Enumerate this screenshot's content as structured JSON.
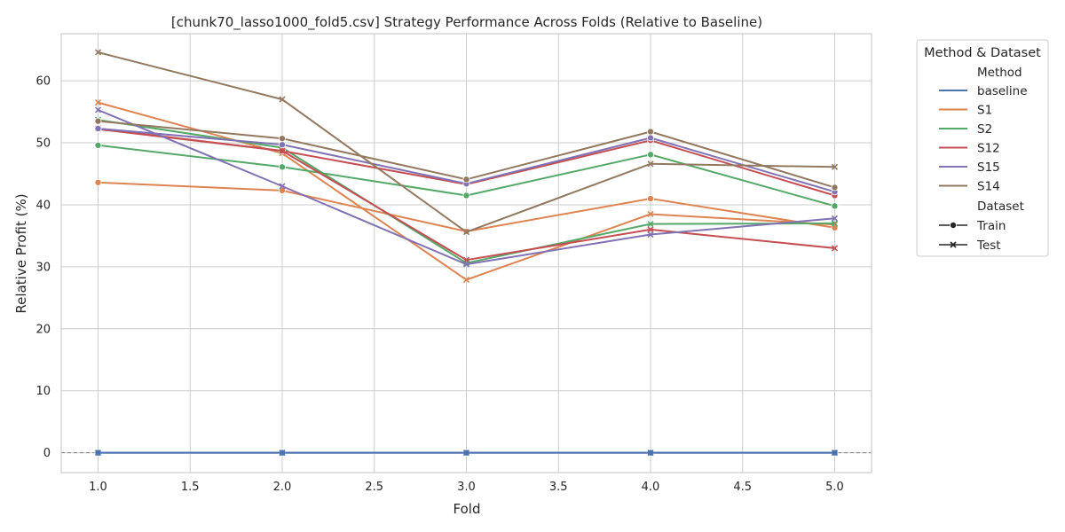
{
  "chart_data": {
    "type": "line",
    "title": "[chunk70_lasso1000_fold5.csv] Strategy Performance Across Folds (Relative to Baseline)",
    "xlabel": "Fold",
    "ylabel": "Relative Profit (%)",
    "xlim": [
      0.8,
      5.2
    ],
    "ylim": [
      -3.2,
      67.6
    ],
    "xticks": [
      1.0,
      1.5,
      2.0,
      2.5,
      3.0,
      3.5,
      4.0,
      4.5,
      5.0
    ],
    "xtick_labels": [
      "1.0",
      "1.5",
      "2.0",
      "2.5",
      "3.0",
      "3.5",
      "4.0",
      "4.5",
      "5.0"
    ],
    "yticks": [
      0,
      10,
      20,
      30,
      40,
      50,
      60
    ],
    "ytick_labels": [
      "0",
      "10",
      "20",
      "30",
      "40",
      "50",
      "60"
    ],
    "grid": true,
    "reference_line_y": 0,
    "x": [
      1,
      2,
      3,
      4,
      5
    ],
    "legend": {
      "title": "Method & Dataset",
      "placement": "outside-right",
      "method_header": "Method",
      "dataset_header": "Dataset",
      "methods": [
        {
          "name": "baseline",
          "color": "#4c72b0"
        },
        {
          "name": "S1",
          "color": "#dd8452"
        },
        {
          "name": "S2",
          "color": "#55a868"
        },
        {
          "name": "S12",
          "color": "#c44e52"
        },
        {
          "name": "S15",
          "color": "#8172b3"
        },
        {
          "name": "S14",
          "color": "#937860"
        }
      ],
      "datasets": [
        {
          "name": "Train",
          "marker": "circle"
        },
        {
          "name": "Test",
          "marker": "x"
        }
      ]
    },
    "series": [
      {
        "method": "baseline",
        "dataset": "Train",
        "color": "#4c72b0",
        "marker": "circle",
        "values": [
          0,
          0,
          0,
          0,
          0
        ]
      },
      {
        "method": "baseline",
        "dataset": "Test",
        "color": "#4c72b0",
        "marker": "x",
        "values": [
          0,
          0,
          0,
          0,
          0
        ]
      },
      {
        "method": "S1",
        "dataset": "Train",
        "color": "#dd8452",
        "marker": "circle",
        "values": [
          43.6,
          42.3,
          35.7,
          41.0,
          36.3
        ]
      },
      {
        "method": "S1",
        "dataset": "Test",
        "color": "#dd8452",
        "marker": "x",
        "values": [
          56.5,
          48.3,
          27.9,
          38.5,
          36.8
        ]
      },
      {
        "method": "S2",
        "dataset": "Train",
        "color": "#55a868",
        "marker": "circle",
        "values": [
          49.6,
          46.1,
          41.5,
          48.1,
          39.8
        ]
      },
      {
        "method": "S2",
        "dataset": "Test",
        "color": "#55a868",
        "marker": "x",
        "values": [
          53.7,
          49.2,
          30.6,
          36.9,
          37.0
        ]
      },
      {
        "method": "S12",
        "dataset": "Train",
        "color": "#c44e52",
        "marker": "circle",
        "values": [
          52.2,
          48.7,
          43.3,
          50.4,
          41.5
        ]
      },
      {
        "method": "S12",
        "dataset": "Test",
        "color": "#c44e52",
        "marker": "x",
        "values": [
          52.3,
          48.7,
          31.1,
          36.0,
          33.0
        ]
      },
      {
        "method": "S15",
        "dataset": "Train",
        "color": "#8172b3",
        "marker": "circle",
        "values": [
          52.3,
          49.7,
          43.4,
          50.8,
          42.1
        ]
      },
      {
        "method": "S15",
        "dataset": "Test",
        "color": "#8172b3",
        "marker": "x",
        "values": [
          55.3,
          43.0,
          30.4,
          35.2,
          37.8
        ]
      },
      {
        "method": "S14",
        "dataset": "Train",
        "color": "#937860",
        "marker": "circle",
        "values": [
          53.5,
          50.7,
          44.1,
          51.8,
          42.8
        ]
      },
      {
        "method": "S14",
        "dataset": "Test",
        "color": "#937860",
        "marker": "x",
        "values": [
          64.6,
          57.0,
          35.6,
          46.6,
          46.1
        ]
      }
    ]
  }
}
